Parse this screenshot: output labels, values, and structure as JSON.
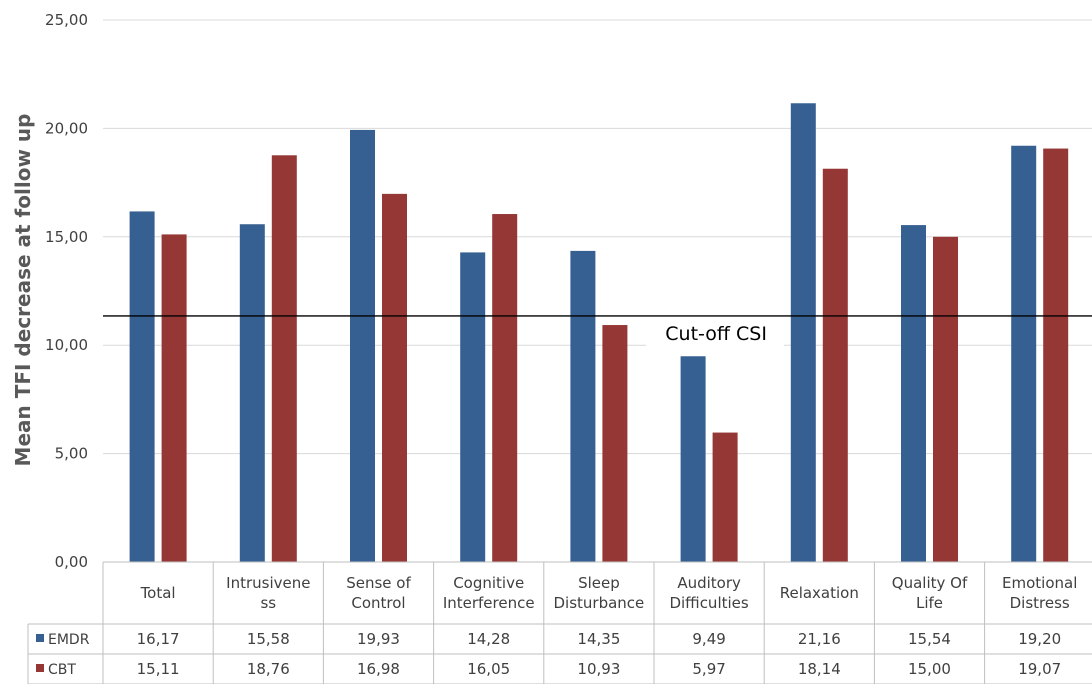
{
  "chart_data": {
    "type": "bar",
    "title": "",
    "ylabel": "Mean TFI decrease at follow up",
    "xlabel": "",
    "ylim": [
      0,
      25
    ],
    "yticks": [
      "0,00",
      "5,00",
      "10,00",
      "15,00",
      "20,00",
      "25,00"
    ],
    "grid": true,
    "legend": "data-table",
    "categories": [
      [
        "Total"
      ],
      [
        "Intrusivene",
        "ss"
      ],
      [
        "Sense of",
        "Control"
      ],
      [
        "Cognitive",
        "Interference"
      ],
      [
        "Sleep",
        "Disturbance"
      ],
      [
        "Auditory",
        "Difficulties"
      ],
      [
        "Relaxation"
      ],
      [
        "Quality Of",
        "Life"
      ],
      [
        "Emotional",
        "Distress"
      ]
    ],
    "series": [
      {
        "name": "EMDR",
        "color": "#376092",
        "values": [
          16.17,
          15.58,
          19.93,
          14.28,
          14.35,
          9.49,
          21.16,
          15.54,
          19.2
        ],
        "labels": [
          "16,17",
          "15,58",
          "19,93",
          "14,28",
          "14,35",
          "9,49",
          "21,16",
          "15,54",
          "19,20"
        ]
      },
      {
        "name": "CBT",
        "color": "#953735",
        "values": [
          15.11,
          18.76,
          16.98,
          16.05,
          10.93,
          5.97,
          18.14,
          15.0,
          19.07
        ],
        "labels": [
          "15,11",
          "18,76",
          "16,98",
          "16,05",
          "10,93",
          "5,97",
          "18,14",
          "15,00",
          "19,07"
        ]
      }
    ],
    "annotations": [
      {
        "type": "hline",
        "y": 11.35,
        "text": "Cut-off CSI",
        "color": "#000000"
      }
    ]
  }
}
